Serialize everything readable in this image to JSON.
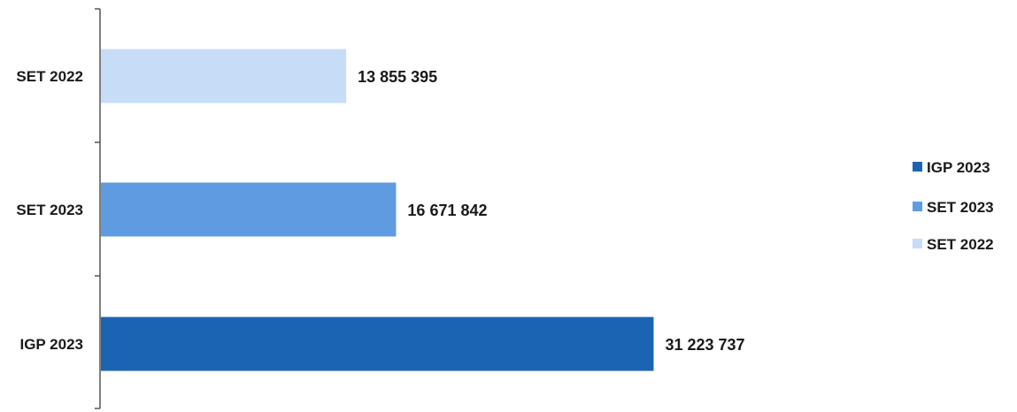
{
  "chart_data": {
    "type": "bar",
    "orientation": "horizontal",
    "categories": [
      "SET 2022",
      "SET 2023",
      "IGP  2023"
    ],
    "values": [
      13855395,
      16671842,
      31223737
    ],
    "value_labels": [
      "13 855 395",
      "16 671 842",
      "31 223 737"
    ],
    "colors": [
      "#c6dcf7",
      "#5f9be0",
      "#1b64b4"
    ],
    "legend": {
      "position": "right",
      "entries": [
        {
          "label": "IGP  2023",
          "color": "#1b64b4"
        },
        {
          "label": "SET 2023",
          "color": "#5f9be0"
        },
        {
          "label": "SET 2022",
          "color": "#c6dcf7"
        }
      ]
    },
    "title": "",
    "xlabel": "",
    "ylabel": "",
    "xlim": [
      0,
      40000000
    ],
    "grid": false
  }
}
